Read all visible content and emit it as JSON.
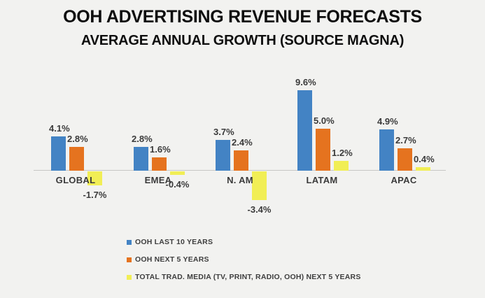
{
  "title": "OOH ADVERTISING REVENUE FORECASTS",
  "subtitle": "AVERAGE ANNUAL GROWTH (SOURCE MAGNA)",
  "colors": {
    "blue": "#4383c4",
    "orange": "#e5731f",
    "yellow": "#f1ee55",
    "axis": "#c7c7c5",
    "label_text": "#3b3b3b",
    "title_text": "#0e0e0e",
    "background": "#f2f2f0"
  },
  "chart_data": {
    "type": "bar",
    "title": "OOH ADVERTISING REVENUE FORECASTS",
    "subtitle": "AVERAGE ANNUAL GROWTH (SOURCE MAGNA)",
    "categories": [
      "GLOBAL",
      "EMEA",
      "N. AM",
      "LATAM",
      "APAC"
    ],
    "series": [
      {
        "name": "OOH LAST 10 YEARS",
        "color_key": "blue",
        "values": [
          4.1,
          2.8,
          3.7,
          9.6,
          4.9
        ]
      },
      {
        "name": "OOH NEXT 5 YEARS",
        "color_key": "orange",
        "values": [
          2.8,
          1.6,
          2.4,
          5.0,
          2.7
        ]
      },
      {
        "name": "TOTAL TRAD. MEDIA (TV, PRINT, RADIO, OOH) NEXT 5 YEARS",
        "color_key": "yellow",
        "values": [
          -1.7,
          -0.4,
          -3.4,
          1.2,
          0.4
        ]
      }
    ],
    "value_label_format": "one_decimal_percent",
    "ylim": [
      -3.4,
      9.6
    ],
    "grid": false,
    "legend_position": "bottom-left",
    "xlabel": "",
    "ylabel": ""
  }
}
